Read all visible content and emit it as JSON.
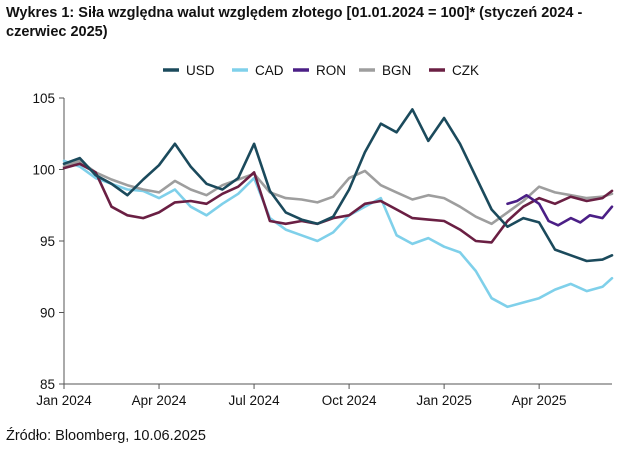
{
  "chart_title": "Wykres 1: Siła względna walut względem złotego [01.01.2024 = 100]* (styczeń 2024 - czerwiec 2025)",
  "source": "Źródło: Bloomberg, 10.06.2025",
  "colors": {
    "USD": "#1b4a5c",
    "CAD": "#7fd0ea",
    "RON": "#4b1f86",
    "BGN": "#9e9e9e",
    "CZK": "#6a1f43",
    "axis": "#555555",
    "text": "#111111"
  },
  "chart_data": {
    "type": "line",
    "title": "Wykres 1: Siła względna walut względem złotego [01.01.2024 = 100]* (styczeń 2024 - czerwiec 2025)",
    "xlabel": "",
    "ylabel": "",
    "ylim": [
      85,
      105
    ],
    "yticks": [
      "85",
      "90",
      "95",
      "100",
      "105"
    ],
    "xticks": [
      "Jan 2024",
      "Apr 2024",
      "Jul 2024",
      "Oct 2024",
      "Jan 2025",
      "Apr 2025"
    ],
    "x_unit": "months since Jan 2024",
    "xlim": [
      0,
      17.3
    ],
    "legend": [
      "USD",
      "CAD",
      "RON",
      "BGN",
      "CZK"
    ],
    "legend_position": "top-center",
    "series": [
      {
        "name": "USD",
        "x": [
          0,
          0.5,
          1,
          1.5,
          2,
          2.5,
          3,
          3.5,
          4,
          4.5,
          5,
          5.5,
          6,
          6.5,
          7,
          7.5,
          8,
          8.5,
          9,
          9.5,
          10,
          10.5,
          11,
          11.5,
          12,
          12.5,
          13,
          13.5,
          14,
          14.5,
          15,
          15.5,
          16,
          16.5,
          17,
          17.3
        ],
        "values": [
          100.4,
          100.8,
          99.6,
          99.0,
          98.2,
          99.3,
          100.3,
          101.8,
          100.2,
          99.0,
          98.6,
          99.4,
          101.8,
          98.5,
          97.0,
          96.5,
          96.2,
          96.7,
          98.6,
          101.2,
          103.2,
          102.6,
          104.2,
          102.0,
          103.6,
          101.8,
          99.5,
          97.2,
          96.0,
          96.6,
          96.3,
          94.4,
          94.0,
          93.6,
          93.7,
          94.0
        ]
      },
      {
        "name": "CAD",
        "x": [
          0,
          0.5,
          1,
          1.5,
          2,
          2.5,
          3,
          3.5,
          4,
          4.5,
          5,
          5.5,
          6,
          6.5,
          7,
          7.5,
          8,
          8.5,
          9,
          9.5,
          10,
          10.5,
          11,
          11.5,
          12,
          12.5,
          13,
          13.5,
          14,
          14.5,
          15,
          15.5,
          16,
          16.5,
          17,
          17.3
        ],
        "values": [
          100.6,
          100.2,
          99.4,
          99.0,
          98.6,
          98.5,
          98.0,
          98.6,
          97.4,
          96.8,
          97.6,
          98.3,
          99.4,
          96.6,
          95.8,
          95.4,
          95.0,
          95.6,
          96.8,
          97.4,
          98.0,
          95.4,
          94.8,
          95.2,
          94.6,
          94.2,
          92.9,
          91.0,
          90.4,
          90.7,
          91.0,
          91.6,
          92.0,
          91.5,
          91.8,
          92.4
        ]
      },
      {
        "name": "RON",
        "x": [
          14,
          14.3,
          14.6,
          15,
          15.3,
          15.6,
          16,
          16.3,
          16.6,
          17,
          17.3
        ],
        "values": [
          97.6,
          97.8,
          98.2,
          97.6,
          96.4,
          96.1,
          96.6,
          96.3,
          96.8,
          96.6,
          97.4
        ]
      },
      {
        "name": "BGN",
        "x": [
          0,
          0.5,
          1,
          1.5,
          2,
          2.5,
          3,
          3.5,
          4,
          4.5,
          5,
          5.5,
          6,
          6.5,
          7,
          7.5,
          8,
          8.5,
          9,
          9.5,
          10,
          10.5,
          11,
          11.5,
          12,
          12.5,
          13,
          13.5,
          14,
          14.5,
          15,
          15.5,
          16,
          16.5,
          17,
          17.3
        ],
        "values": [
          100.2,
          100.6,
          99.8,
          99.3,
          98.9,
          98.6,
          98.4,
          99.2,
          98.6,
          98.2,
          98.9,
          99.3,
          99.7,
          98.4,
          98.0,
          97.9,
          97.7,
          98.1,
          99.4,
          99.9,
          98.9,
          98.4,
          97.9,
          98.2,
          98.0,
          97.4,
          96.7,
          96.2,
          97.0,
          97.8,
          98.8,
          98.4,
          98.2,
          98.0,
          98.1,
          98.3
        ]
      },
      {
        "name": "CZK",
        "x": [
          0,
          0.5,
          1,
          1.5,
          2,
          2.5,
          3,
          3.5,
          4,
          4.5,
          5,
          5.5,
          6,
          6.5,
          7,
          7.5,
          8,
          8.5,
          9,
          9.5,
          10,
          10.5,
          11,
          11.5,
          12,
          12.5,
          13,
          13.5,
          14,
          14.5,
          15,
          15.5,
          16,
          16.5,
          17,
          17.3
        ],
        "values": [
          100.1,
          100.4,
          99.8,
          97.4,
          96.8,
          96.6,
          97.0,
          97.7,
          97.8,
          97.6,
          98.3,
          98.8,
          99.8,
          96.4,
          96.2,
          96.4,
          96.2,
          96.6,
          96.8,
          97.6,
          97.8,
          97.2,
          96.6,
          96.5,
          96.4,
          95.8,
          95.0,
          94.9,
          96.4,
          97.4,
          98.0,
          97.6,
          98.1,
          97.8,
          98.0,
          98.5
        ]
      }
    ]
  }
}
